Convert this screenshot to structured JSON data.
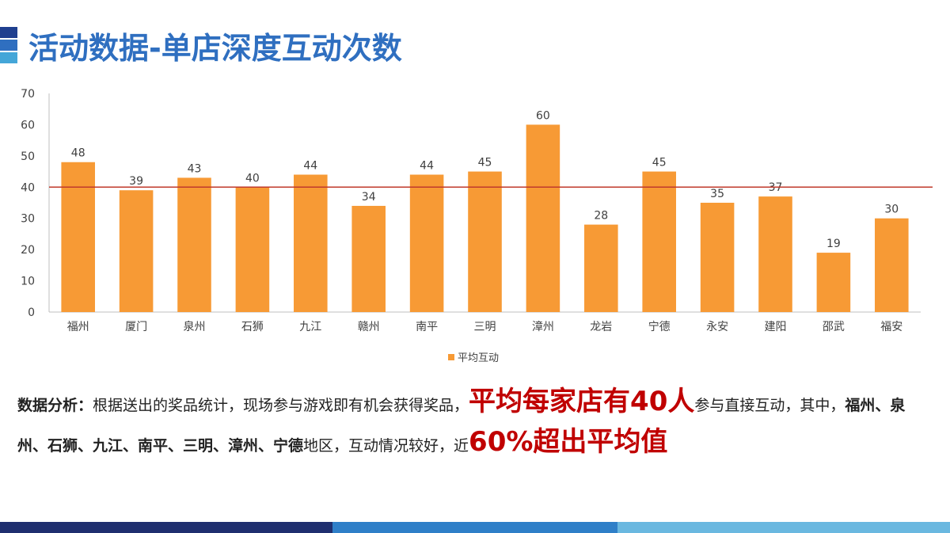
{
  "title": "活动数据-单店深度互动次数",
  "colors": {
    "bar": "#f79a35",
    "average_line": "#c0392b",
    "title": "#2f6fc0",
    "highlight": "#c00000"
  },
  "chart_data": {
    "type": "bar",
    "categories": [
      "福州",
      "厦门",
      "泉州",
      "石狮",
      "九江",
      "赣州",
      "南平",
      "三明",
      "漳州",
      "龙岩",
      "宁德",
      "永安",
      "建阳",
      "邵武",
      "福安"
    ],
    "series": [
      {
        "name": "平均互动",
        "values": [
          48,
          39,
          43,
          40,
          44,
          34,
          44,
          45,
          60,
          28,
          45,
          35,
          37,
          19,
          30
        ]
      }
    ],
    "reference_line": 40,
    "ylim": [
      0,
      70
    ],
    "yticks": [
      "0",
      "10",
      "20",
      "30",
      "40",
      "50",
      "60",
      "70"
    ],
    "data_labels": true,
    "legend_position": "bottom",
    "grid": false
  },
  "analysis": {
    "lead": "数据分析：",
    "text1": "根据送出的奖品统计，现场参与游戏即有机会获得奖品，",
    "highlight1": "平均每家店有40人",
    "text2": "参与直接互动，其中，",
    "regions": "福州、泉州、石狮、九江、南平、三明、漳州、宁德",
    "text3": "地区，互动情况较好，近",
    "highlight2": "60%超出平均值"
  }
}
